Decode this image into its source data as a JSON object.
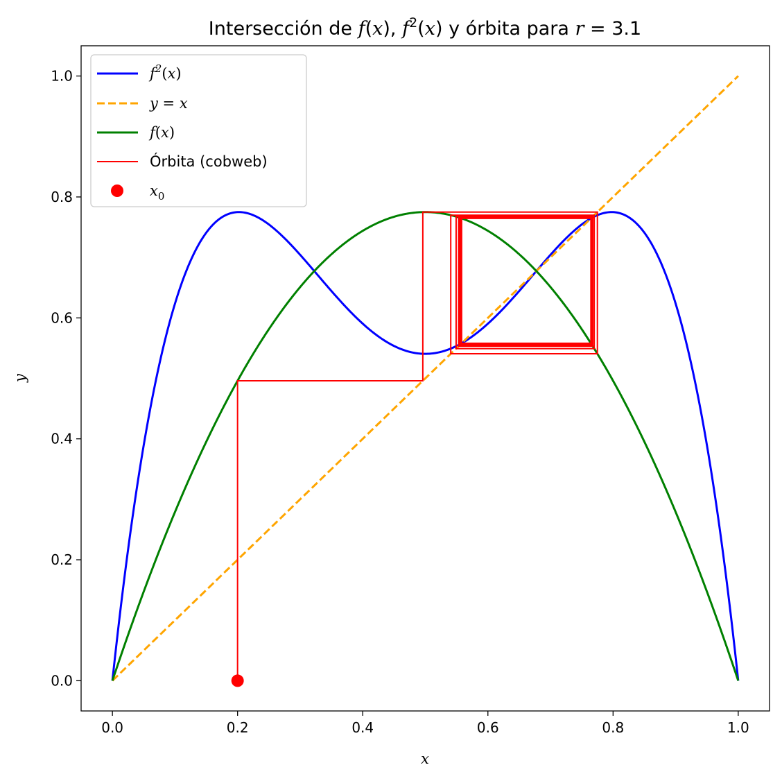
{
  "chart_data": {
    "type": "line",
    "title_parts": [
      "Intersección de ",
      "f",
      "(",
      "x",
      "), ",
      "f",
      "2",
      "(",
      "x",
      ") y órbita para ",
      "r",
      " = 3.1"
    ],
    "xlabel": "x",
    "ylabel": "y",
    "xlim": [
      -0.05,
      1.05
    ],
    "ylim": [
      -0.05,
      1.05
    ],
    "xticks": [
      0.0,
      0.2,
      0.4,
      0.6,
      0.8,
      1.0
    ],
    "yticks": [
      0.0,
      0.2,
      0.4,
      0.6,
      0.8,
      1.0
    ],
    "tick_labels": [
      "0.0",
      "0.2",
      "0.4",
      "0.6",
      "0.8",
      "1.0"
    ],
    "r": 3.1,
    "x0": 0.2,
    "cobweb_iterations": 60,
    "grid": false,
    "legend_position": "upper left",
    "series": [
      {
        "name": "f2(x)",
        "legend_label": [
          "f",
          "2",
          "(",
          "x",
          ")"
        ],
        "expression": "r*(r*x*(1-x))*(1-r*x*(1-x))",
        "color": "#0000ff",
        "style": "solid"
      },
      {
        "name": "y = x",
        "legend_label": [
          "y",
          " = ",
          "x"
        ],
        "expression": "x",
        "color": "#ffa500",
        "style": "dashed"
      },
      {
        "name": "f(x)",
        "legend_label": [
          "f",
          "(",
          "x",
          ")"
        ],
        "expression": "r*x*(1-x)",
        "color": "#008000",
        "style": "solid"
      },
      {
        "name": "Órbita (cobweb)",
        "legend_label": [
          "Órbita (cobweb)"
        ],
        "color": "#ff0000",
        "style": "solid"
      },
      {
        "name": "x0",
        "legend_label": [
          "x",
          "0"
        ],
        "color": "#ff0000",
        "style": "marker",
        "point": [
          0.2,
          0.0
        ]
      }
    ]
  }
}
